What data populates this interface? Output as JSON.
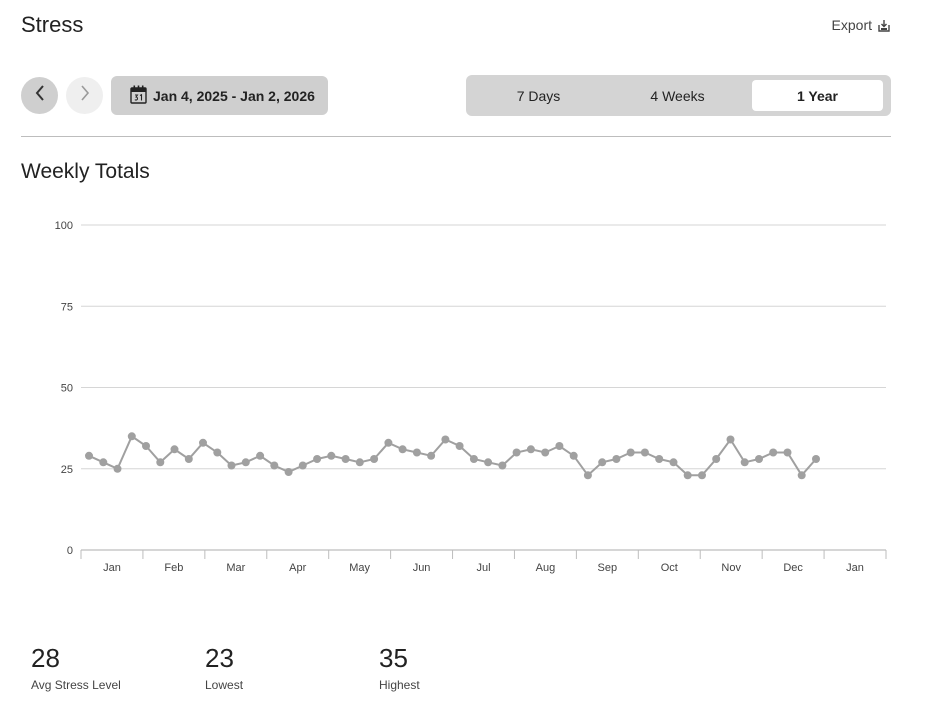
{
  "header": {
    "title": "Stress",
    "export_label": "Export",
    "export_icon": "download-icon"
  },
  "nav": {
    "prev_icon": "chevron-left-icon",
    "next_icon": "chevron-right-icon",
    "date_range": "Jan 4, 2025 - Jan 2, 2026",
    "calendar_icon": "calendar-icon"
  },
  "range_tabs": [
    {
      "label": "7 Days",
      "selected": false
    },
    {
      "label": "4 Weeks",
      "selected": false
    },
    {
      "label": "1 Year",
      "selected": true
    }
  ],
  "section": {
    "title": "Weekly Totals"
  },
  "chart_data": {
    "type": "line",
    "title": "",
    "xlabel": "",
    "ylabel": "",
    "ylim": [
      0,
      100
    ],
    "yticks": [
      0,
      25,
      50,
      75,
      100
    ],
    "month_labels": [
      "Jan",
      "Feb",
      "Mar",
      "Apr",
      "May",
      "Jun",
      "Jul",
      "Aug",
      "Sep",
      "Oct",
      "Nov",
      "Dec",
      "Jan"
    ],
    "grid": true,
    "colors": {
      "line": "#a0a0a0",
      "grid": "#d6d6d6",
      "axis": "#bdbdbd"
    },
    "series": [
      {
        "values": [
          29,
          27,
          25,
          35,
          32,
          27,
          31,
          28,
          33,
          30,
          26,
          27,
          29,
          26,
          24,
          26,
          28,
          29,
          28,
          27,
          28,
          33,
          31,
          30,
          29,
          34,
          32,
          28,
          27,
          26,
          30,
          31,
          30,
          32,
          29,
          23,
          27,
          28,
          30,
          30,
          28,
          27,
          23,
          23,
          28,
          34,
          27,
          28,
          30,
          30,
          23,
          28
        ]
      }
    ]
  },
  "stats": [
    {
      "value": "28",
      "label": "Avg Stress Level"
    },
    {
      "value": "23",
      "label": "Lowest"
    },
    {
      "value": "35",
      "label": "Highest"
    }
  ]
}
